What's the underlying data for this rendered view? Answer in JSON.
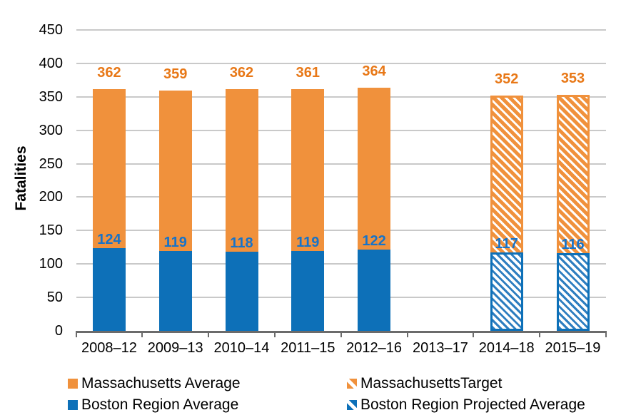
{
  "chart_data": {
    "type": "bar",
    "subtype": "stacked",
    "title": "",
    "ylabel": "Fatalities",
    "xlabel": "",
    "ylim": [
      0,
      450
    ],
    "ytick_step": 50,
    "grid": true,
    "legend_position": "bottom",
    "categories": [
      "2008–12",
      "2009–13",
      "2010–14",
      "2011–15",
      "2012–16",
      "2013–17",
      "2014–18",
      "2015–19"
    ],
    "series": [
      {
        "name": "Boston Region Average",
        "style": "solid",
        "color": "#0D70B8",
        "values": [
          124,
          119,
          118,
          119,
          122,
          null,
          null,
          null
        ]
      },
      {
        "name": "Boston Region Projected Average",
        "style": "hatched",
        "color": "#0D70B8",
        "values": [
          null,
          null,
          null,
          null,
          null,
          null,
          117,
          116
        ]
      },
      {
        "name": "Massachusetts Average",
        "style": "solid",
        "color": "#F0913C",
        "stacking": "bar top equals this total",
        "values": [
          362,
          359,
          362,
          361,
          364,
          null,
          null,
          null
        ]
      },
      {
        "name": "MassachusettsTarget",
        "style": "hatched",
        "color": "#F0913C",
        "stacking": "bar top equals this total",
        "values": [
          null,
          null,
          null,
          null,
          null,
          null,
          352,
          353
        ]
      }
    ],
    "data_label_colors": {
      "massachusetts": "#E87817",
      "boston": "#1773C9"
    }
  },
  "legend": {
    "items": [
      {
        "label": "Massachusetts Average",
        "swatch": "ma-solid"
      },
      {
        "label": "MassachusettsTarget",
        "swatch": "ma-hatched"
      },
      {
        "label": "Boston Region Average",
        "swatch": "boston-solid"
      },
      {
        "label": "Boston Region Projected Average",
        "swatch": "boston-hatched"
      }
    ]
  },
  "colors": {
    "massachusetts_bar": "#F0913C",
    "massachusetts_label": "#E87817",
    "boston_bar": "#0D70B8",
    "boston_hatch_stripe": "#2E7EC0",
    "boston_label": "#1773C9",
    "gridline": "#C9C9C9",
    "axis": "#6B6B6B",
    "text": "#000000",
    "background": "#FFFFFF"
  }
}
